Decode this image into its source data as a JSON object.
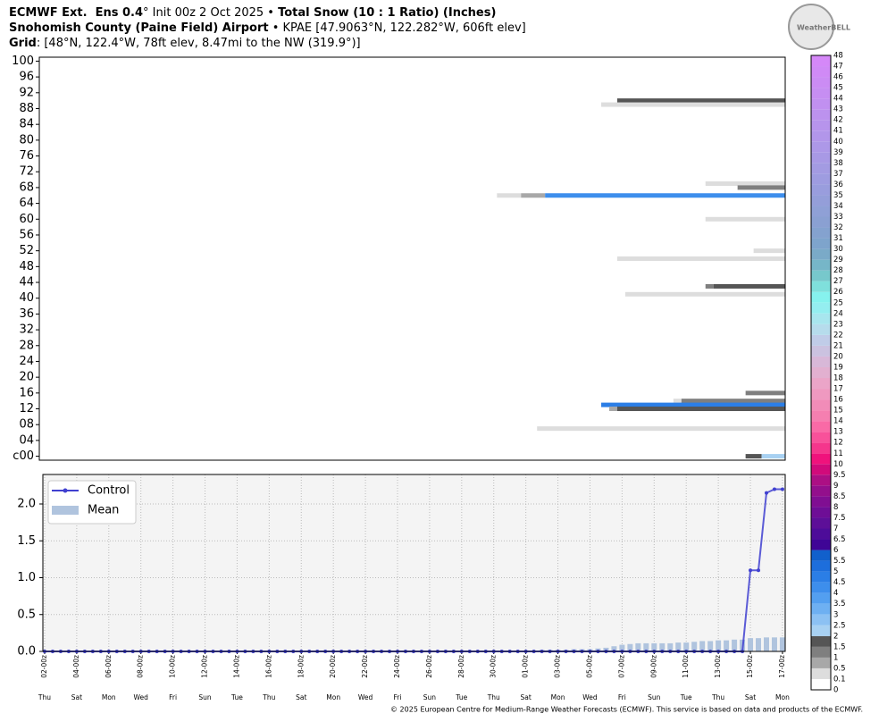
{
  "header": {
    "line1": [
      {
        "text": "ECMWF Ext.  Ens 0.4",
        "bold": true
      },
      {
        "text": "° Init 00z 2 Oct 2025 • ",
        "bold": false
      },
      {
        "text": "Total Snow (10 : 1 Ratio) (Inches)",
        "bold": true
      }
    ],
    "line2": [
      {
        "text": "Snohomish County (Paine Field) Airport",
        "bold": true
      },
      {
        "text": " • KPAE [47.9063°N, 122.282°W, 606ft elev]",
        "bold": false
      }
    ],
    "line3": [
      {
        "text": "Grid",
        "bold": true
      },
      {
        "text": ": [48°N, 122.4°W, 78ft elev, 8.47mi to the NW (319.9°)]",
        "bold": false
      }
    ],
    "logo": "WeatherBELL",
    "footer": "© 2025 European Centre for Medium-Range Weather Forecasts (ECMWF). This service is based on data and products of the ECMWF."
  },
  "chart_data": [
    {
      "type": "plume",
      "xlim": [
        -0.33,
        46.17
      ],
      "ylim": [
        -1,
        101
      ],
      "yticks": [
        {
          "value": 0,
          "label": "c00"
        },
        {
          "value": 4,
          "label": "04"
        },
        {
          "value": 8,
          "label": "08"
        },
        12,
        16,
        20,
        24,
        28,
        32,
        36,
        40,
        44,
        48,
        52,
        56,
        60,
        64,
        68,
        72,
        76,
        80,
        84,
        88,
        92,
        96,
        100
      ],
      "bars": [
        {
          "member": 90,
          "segments": [
            {
              "from": 35.7,
              "value": 1.5
            }
          ]
        },
        {
          "member": 89,
          "segments": [
            {
              "from": 34.7,
              "value": 0.1
            }
          ]
        },
        {
          "member": 69,
          "segments": [
            {
              "from": 41.2,
              "value": 0.1
            }
          ]
        },
        {
          "member": 68,
          "segments": [
            {
              "from": 43.2,
              "value": 1
            }
          ]
        },
        {
          "member": 66,
          "segments": [
            {
              "from": 28.2,
              "value": 0.1
            },
            {
              "from": 29.7,
              "value": 0.5
            },
            {
              "from": 31.2,
              "value": 4
            }
          ]
        },
        {
          "member": 60,
          "segments": [
            {
              "from": 41.2,
              "value": 0.1
            }
          ]
        },
        {
          "member": 52,
          "segments": [
            {
              "from": 44.2,
              "value": 0.1
            }
          ]
        },
        {
          "member": 50,
          "segments": [
            {
              "from": 35.7,
              "value": 0.1
            }
          ]
        },
        {
          "member": 43,
          "segments": [
            {
              "from": 41.2,
              "value": 1
            },
            {
              "from": 41.7,
              "value": 1.5
            }
          ]
        },
        {
          "member": 41,
          "segments": [
            {
              "from": 36.2,
              "value": 0.1
            }
          ]
        },
        {
          "member": 16,
          "segments": [
            {
              "from": 43.7,
              "value": 1
            }
          ]
        },
        {
          "member": 14,
          "segments": [
            {
              "from": 39.2,
              "value": 0.1
            },
            {
              "from": 39.7,
              "value": 1
            }
          ]
        },
        {
          "member": 13,
          "segments": [
            {
              "from": 34.7,
              "value": 4.5
            }
          ]
        },
        {
          "member": 12,
          "segments": [
            {
              "from": 35.2,
              "value": 0.5
            },
            {
              "from": 35.7,
              "value": 1.5
            }
          ]
        },
        {
          "member": 7,
          "segments": [
            {
              "from": 30.7,
              "value": 0.1
            }
          ]
        },
        {
          "member": 0,
          "segments": [
            {
              "from": 43.7,
              "value": 1.5
            },
            {
              "from": 44.7,
              "value": 2
            }
          ]
        }
      ]
    },
    {
      "type": "line",
      "xlim": [
        -0.11,
        46.17
      ],
      "ylim": [
        0,
        2.4
      ],
      "grid": true,
      "legend": "upper-left",
      "yticks": [
        {
          "value": 0,
          "label": "0.0"
        },
        {
          "value": 0.5,
          "label": "0.5"
        },
        {
          "value": 1,
          "label": "1.0"
        },
        {
          "value": 1.5,
          "label": "1.5"
        },
        {
          "value": 2,
          "label": "2.0"
        }
      ],
      "xticks": [
        {
          "value": 0,
          "label": "02-00z"
        },
        {
          "value": 2,
          "label": "04-00z"
        },
        {
          "value": 4,
          "label": "06-00z"
        },
        {
          "value": 6,
          "label": "08-00z"
        },
        {
          "value": 8,
          "label": "10-00z"
        },
        {
          "value": 10,
          "label": "12-00z"
        },
        {
          "value": 12,
          "label": "14-00z"
        },
        {
          "value": 14,
          "label": "16-00z"
        },
        {
          "value": 16,
          "label": "18-00z"
        },
        {
          "value": 18,
          "label": "20-00z"
        },
        {
          "value": 20,
          "label": "22-00z"
        },
        {
          "value": 22,
          "label": "24-00z"
        },
        {
          "value": 24,
          "label": "26-00z"
        },
        {
          "value": 26,
          "label": "28-00z"
        },
        {
          "value": 28,
          "label": "30-00z"
        },
        {
          "value": 30,
          "label": "01-00z"
        },
        {
          "value": 32,
          "label": "03-00z"
        },
        {
          "value": 34,
          "label": "05-00z"
        },
        {
          "value": 36,
          "label": "07-00z"
        },
        {
          "value": 38,
          "label": "09-00z"
        },
        {
          "value": 40,
          "label": "11-00z"
        },
        {
          "value": 42,
          "label": "13-00z"
        },
        {
          "value": 44,
          "label": "15-00z"
        },
        {
          "value": 46,
          "label": "17-00z"
        }
      ],
      "xtick_days": [
        "Thu",
        "Sat",
        "Mon",
        "Wed",
        "Fri",
        "Sun",
        "Tue",
        "Thu",
        "Sat",
        "Mon",
        "Wed",
        "Fri",
        "Sun",
        "Tue",
        "Thu",
        "Sat",
        "Mon",
        "Wed",
        "Fri",
        "Sun",
        "Tue",
        "Thu",
        "Sat",
        "Mon"
      ],
      "x": [
        0,
        0.5,
        1,
        1.5,
        2,
        2.5,
        3,
        3.5,
        4,
        4.5,
        5,
        5.5,
        6,
        6.5,
        7,
        7.5,
        8,
        8.5,
        9,
        9.5,
        10,
        10.5,
        11,
        11.5,
        12,
        12.5,
        13,
        13.5,
        14,
        14.5,
        15,
        15.5,
        16,
        16.5,
        17,
        17.5,
        18,
        18.5,
        19,
        19.5,
        20,
        20.5,
        21,
        21.5,
        22,
        22.5,
        23,
        23.5,
        24,
        24.5,
        25,
        25.5,
        26,
        26.5,
        27,
        27.5,
        28,
        28.5,
        29,
        29.5,
        30,
        30.5,
        31,
        31.5,
        32,
        32.5,
        33,
        33.5,
        34,
        34.5,
        35,
        35.5,
        36,
        36.5,
        37,
        37.5,
        38,
        38.5,
        39,
        39.5,
        40,
        40.5,
        41,
        41.5,
        42,
        42.5,
        43,
        43.5,
        44,
        44.5,
        45,
        45.5,
        46
      ],
      "series": [
        {
          "name": "Control",
          "color": "#4040d0",
          "kind": "line",
          "values": [
            0,
            0,
            0,
            0,
            0,
            0,
            0,
            0,
            0,
            0,
            0,
            0,
            0,
            0,
            0,
            0,
            0,
            0,
            0,
            0,
            0,
            0,
            0,
            0,
            0,
            0,
            0,
            0,
            0,
            0,
            0,
            0,
            0,
            0,
            0,
            0,
            0,
            0,
            0,
            0,
            0,
            0,
            0,
            0,
            0,
            0,
            0,
            0,
            0,
            0,
            0,
            0,
            0,
            0,
            0,
            0,
            0,
            0,
            0,
            0,
            0,
            0,
            0,
            0,
            0,
            0,
            0,
            0,
            0,
            0,
            0,
            0,
            0,
            0,
            0,
            0,
            0,
            0,
            0,
            0,
            0,
            0,
            0,
            0,
            0,
            0,
            0,
            0,
            1.1,
            1.1,
            2.15,
            2.2,
            2.2
          ]
        },
        {
          "name": "Mean",
          "color": "#b0c4de",
          "kind": "bar",
          "values": [
            0,
            0,
            0,
            0,
            0,
            0,
            0,
            0,
            0,
            0,
            0,
            0,
            0,
            0,
            0,
            0,
            0,
            0,
            0,
            0,
            0,
            0,
            0,
            0,
            0,
            0,
            0,
            0,
            0,
            0,
            0,
            0,
            0,
            0,
            0,
            0,
            0,
            0,
            0,
            0,
            0,
            0,
            0,
            0,
            0,
            0,
            0,
            0,
            0,
            0,
            0,
            0,
            0,
            0,
            0,
            0,
            0,
            0,
            0.01,
            0.01,
            0.01,
            0.01,
            0.02,
            0.02,
            0.02,
            0.02,
            0.03,
            0.03,
            0.03,
            0.04,
            0.05,
            0.07,
            0.09,
            0.1,
            0.11,
            0.11,
            0.11,
            0.11,
            0.11,
            0.12,
            0.12,
            0.13,
            0.14,
            0.14,
            0.15,
            0.15,
            0.16,
            0.16,
            0.18,
            0.18,
            0.19,
            0.19,
            0.19
          ]
        }
      ]
    },
    {
      "type": "colorbar",
      "bounds": [
        0,
        0.1,
        0.5,
        1,
        1.5,
        2,
        2.5,
        3,
        3.5,
        4,
        4.5,
        5,
        5.5,
        6,
        6.5,
        7,
        7.5,
        8,
        8.5,
        9,
        9.5,
        10,
        11,
        12,
        13,
        14,
        15,
        16,
        17,
        18,
        19,
        20,
        21,
        22,
        23,
        24,
        25,
        26,
        27,
        28,
        29,
        30,
        31,
        32,
        33,
        34,
        35,
        36,
        37,
        38,
        39,
        40,
        41,
        42,
        43,
        44,
        45,
        46,
        47,
        48
      ],
      "colors": [
        "#ffffff",
        "#dddddd",
        "#a8a8a8",
        "#7f7f7f",
        "#555555",
        "#a8d1f2",
        "#8cc1f3",
        "#6eb0f2",
        "#539ff0",
        "#3d8eec",
        "#2b7ee6",
        "#1d6edc",
        "#1160cc",
        "#3f0596",
        "#4d0c99",
        "#5d0f98",
        "#6e0e96",
        "#800e92",
        "#930f8c",
        "#ac0f84",
        "#d10a7b",
        "#f0127c",
        "#f5368c",
        "#f8519a",
        "#f96aa6",
        "#f57fb0",
        "#f18cb8",
        "#ef99c0",
        "#eba5c8",
        "#e2b0d0",
        "#d8b8d8",
        "#cbc2e0",
        "#c0cce8",
        "#b6dcec",
        "#a8e6ee",
        "#94eef0",
        "#86f2ee",
        "#7fe0dc",
        "#77c8cc",
        "#76b6c8",
        "#7aaac8",
        "#7ea4cc",
        "#84a2cf",
        "#8aa0d2",
        "#8fa0d6",
        "#949ed9",
        "#999ddd",
        "#9e9ce0",
        "#a39be2",
        "#a899e5",
        "#ad98e8",
        "#b296ea",
        "#b794ec",
        "#bc92ee",
        "#c190f0",
        "#c68ef2",
        "#cb8cf4",
        "#d08af6",
        "#d588f8"
      ]
    }
  ]
}
